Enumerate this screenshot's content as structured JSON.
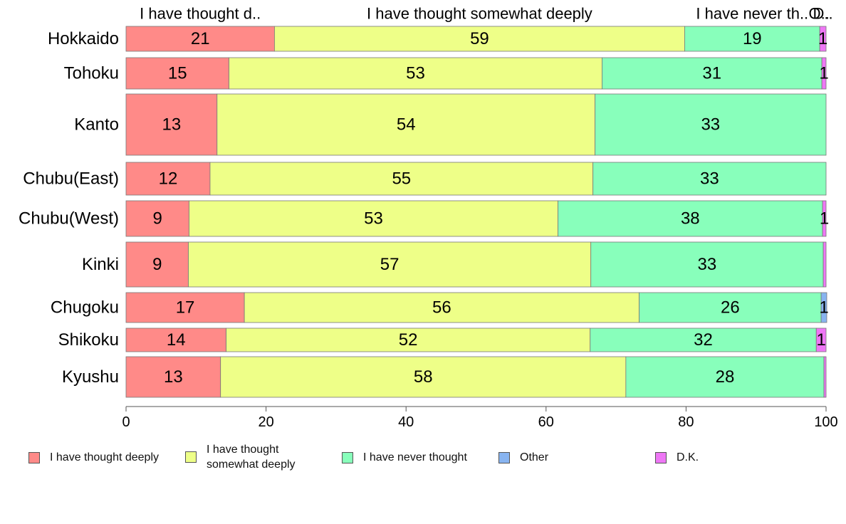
{
  "chart_data": {
    "type": "bar",
    "orientation": "horizontal",
    "stacked": true,
    "categories": [
      "Hokkaido",
      "Tohoku",
      "Kanto",
      "Chubu(East)",
      "Chubu(West)",
      "Kinki",
      "Chugoku",
      "Shikoku",
      "Kyushu"
    ],
    "series": [
      {
        "name": "I have thought deeply",
        "color": "#ff8a88",
        "values": [
          21.2,
          14.7,
          13.0,
          12.0,
          9.0,
          8.9,
          16.9,
          14.3,
          13.5
        ]
      },
      {
        "name": "I have thought\nsomewhat deeply",
        "color": "#eeff88",
        "values": [
          58.6,
          53.3,
          54.0,
          54.7,
          52.7,
          57.5,
          56.4,
          52.0,
          57.9
        ]
      },
      {
        "name": "I have never thought",
        "color": "#88ffbb",
        "values": [
          19.3,
          31.4,
          33.0,
          33.3,
          37.8,
          33.2,
          26.0,
          32.3,
          28.3
        ]
      },
      {
        "name": "Other",
        "color": "#88b4f0",
        "values": [
          0.0,
          0.0,
          0.0,
          0.0,
          0.0,
          0.0,
          0.8,
          0.0,
          0.0
        ]
      },
      {
        "name": "D.K.",
        "color": "#ee77f5",
        "values": [
          0.9,
          0.6,
          0.0,
          0.0,
          0.5,
          0.4,
          0.0,
          1.4,
          0.3
        ]
      }
    ],
    "data_labels": [
      [
        "21",
        "59",
        "19",
        "",
        "1"
      ],
      [
        "15",
        "53",
        "31",
        "",
        "1"
      ],
      [
        "13",
        "54",
        "33",
        "",
        ""
      ],
      [
        "12",
        "55",
        "33",
        "",
        ""
      ],
      [
        "9",
        "53",
        "38",
        "",
        "1"
      ],
      [
        "9",
        "57",
        "33",
        "",
        ""
      ],
      [
        "17",
        "56",
        "26",
        "1",
        ""
      ],
      [
        "14",
        "52",
        "32",
        "",
        "1"
      ],
      [
        "13",
        "58",
        "28",
        "",
        ""
      ]
    ],
    "top_labels": [
      "I have thought d..",
      "I have thought somewhat deeply",
      "I have never th..",
      "O..",
      "D.."
    ],
    "xlim": [
      0,
      100
    ],
    "xticks": [
      0,
      20,
      40,
      60,
      80,
      100
    ],
    "grid": false,
    "legend_position": "bottom"
  }
}
